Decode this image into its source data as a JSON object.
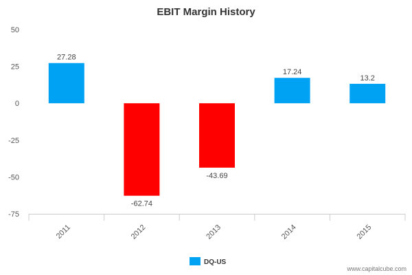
{
  "chart_data": {
    "type": "bar",
    "title": "EBIT Margin History",
    "categories": [
      "2011",
      "2012",
      "2013",
      "2014",
      "2015"
    ],
    "values": [
      27.28,
      -62.74,
      -43.69,
      17.24,
      13.2
    ],
    "data_labels": [
      "27.28",
      "-62.74",
      "-43.69",
      "17.24",
      "13.2"
    ],
    "ylim": [
      -75,
      50
    ],
    "yticks": [
      50,
      25,
      0,
      -25,
      -50,
      -75
    ],
    "ytick_labels": [
      "50",
      "25",
      "0",
      "-25",
      "-50",
      "-75"
    ],
    "xlabel": "",
    "ylabel": "",
    "grid": false,
    "series": [
      {
        "name": "DQ-US",
        "values": [
          27.28,
          -62.74,
          -43.69,
          17.24,
          13.2
        ]
      }
    ],
    "colors": {
      "positive": "#00a2f3",
      "negative": "#ff0000"
    },
    "legend": {
      "label": "DQ-US",
      "color": "#00a2f3",
      "placement": "bottom-center"
    },
    "credit": "www.capitalcube.com"
  }
}
